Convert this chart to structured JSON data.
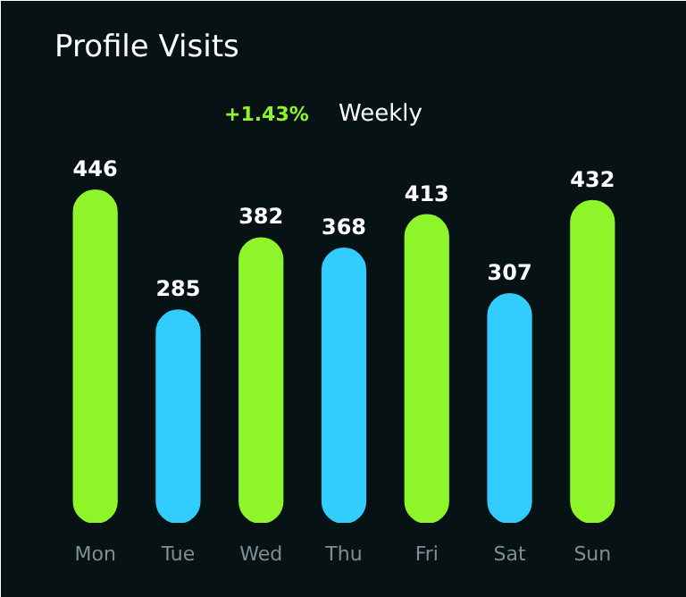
{
  "chart_data": {
    "type": "bar",
    "title": "Profile Visits",
    "subtitle": "Weekly",
    "annotations": [
      "+1.43%"
    ],
    "categories": [
      "Mon",
      "Tue",
      "Wed",
      "Thu",
      "Fri",
      "Sat",
      "Sun"
    ],
    "values": [
      446,
      285,
      382,
      368,
      413,
      307,
      432
    ],
    "colors": [
      "#8ef52b",
      "#33ccff",
      "#8ef52b",
      "#33ccff",
      "#8ef52b",
      "#33ccff",
      "#8ef52b"
    ],
    "data_labels": true,
    "grid": false
  }
}
